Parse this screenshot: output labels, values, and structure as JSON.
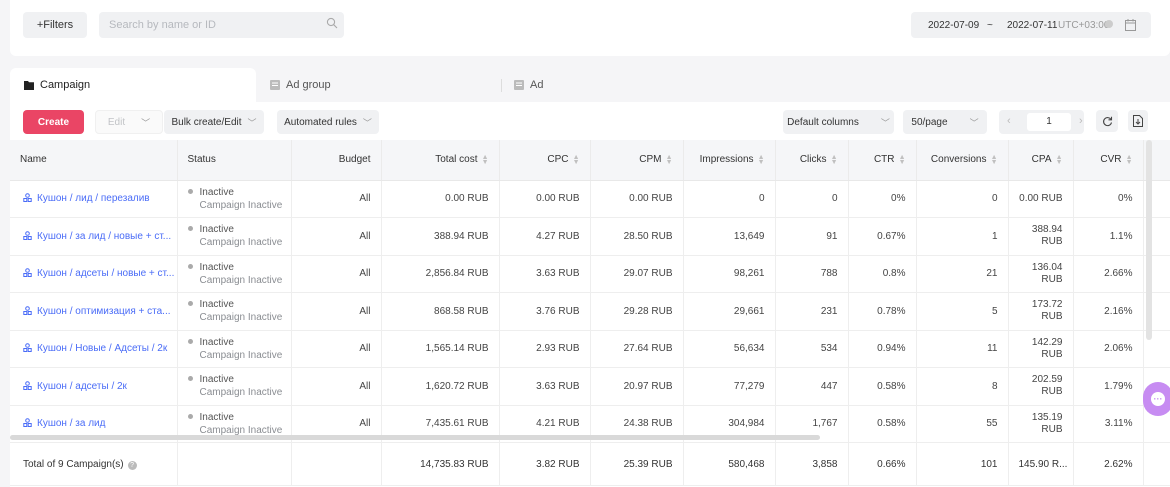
{
  "toolbar": {
    "filters_label": "+Filters",
    "search_placeholder": "Search by name or ID",
    "date_start": "2022-07-09",
    "date_sep": "~",
    "date_end": "2022-07-11",
    "timezone": "UTC+03:00"
  },
  "tabs": [
    {
      "label": "Campaign",
      "icon": "folder-icon",
      "active": true
    },
    {
      "label": "Ad group",
      "icon": "adgroup-icon",
      "active": false
    },
    {
      "label": "Ad",
      "icon": "ad-icon",
      "active": false
    }
  ],
  "actions": {
    "create": "Create",
    "edit": "Edit",
    "bulk": "Bulk create/Edit",
    "automated": "Automated rules",
    "columns": "Default columns",
    "per_page": "50/page",
    "page": "1"
  },
  "columns": [
    "Name",
    "Status",
    "Budget",
    "Total cost",
    "CPC",
    "CPM",
    "Impressions",
    "Clicks",
    "CTR",
    "Conversions",
    "CPA",
    "CVR"
  ],
  "rows": [
    {
      "name": "Кушон / лид / перезалив",
      "status": "Inactive",
      "substatus": "Campaign Inactive",
      "budget": "All",
      "total_cost": "0.00 RUB",
      "cpc": "0.00 RUB",
      "cpm": "0.00 RUB",
      "impressions": "0",
      "clicks": "0",
      "ctr": "0%",
      "conversions": "0",
      "cpa": "0.00 RUB",
      "cvr": "0%"
    },
    {
      "name": "Кушон / за лид / новые + ст...",
      "status": "Inactive",
      "substatus": "Campaign Inactive",
      "budget": "All",
      "total_cost": "388.94 RUB",
      "cpc": "4.27 RUB",
      "cpm": "28.50 RUB",
      "impressions": "13,649",
      "clicks": "91",
      "ctr": "0.67%",
      "conversions": "1",
      "cpa": "388.94 RUB",
      "cvr": "1.1%"
    },
    {
      "name": "Кушон / адсеты / новые + ст...",
      "status": "Inactive",
      "substatus": "Campaign Inactive",
      "budget": "All",
      "total_cost": "2,856.84 RUB",
      "cpc": "3.63 RUB",
      "cpm": "29.07 RUB",
      "impressions": "98,261",
      "clicks": "788",
      "ctr": "0.8%",
      "conversions": "21",
      "cpa": "136.04 RUB",
      "cvr": "2.66%"
    },
    {
      "name": "Кушон / оптимизация + ста...",
      "status": "Inactive",
      "substatus": "Campaign Inactive",
      "budget": "All",
      "total_cost": "868.58 RUB",
      "cpc": "3.76 RUB",
      "cpm": "29.28 RUB",
      "impressions": "29,661",
      "clicks": "231",
      "ctr": "0.78%",
      "conversions": "5",
      "cpa": "173.72 RUB",
      "cvr": "2.16%"
    },
    {
      "name": "Кушон / Новые / Адсеты / 2к",
      "status": "Inactive",
      "substatus": "Campaign Inactive",
      "budget": "All",
      "total_cost": "1,565.14 RUB",
      "cpc": "2.93 RUB",
      "cpm": "27.64 RUB",
      "impressions": "56,634",
      "clicks": "534",
      "ctr": "0.94%",
      "conversions": "11",
      "cpa": "142.29 RUB",
      "cvr": "2.06%"
    },
    {
      "name": "Кушон / адсеты / 2к",
      "status": "Inactive",
      "substatus": "Campaign Inactive",
      "budget": "All",
      "total_cost": "1,620.72 RUB",
      "cpc": "3.63 RUB",
      "cpm": "20.97 RUB",
      "impressions": "77,279",
      "clicks": "447",
      "ctr": "0.58%",
      "conversions": "8",
      "cpa": "202.59 RUB",
      "cvr": "1.79%"
    },
    {
      "name": "Кушон / за лид",
      "status": "Inactive",
      "substatus": "Campaign Inactive",
      "budget": "All",
      "total_cost": "7,435.61 RUB",
      "cpc": "4.21 RUB",
      "cpm": "24.38 RUB",
      "impressions": "304,984",
      "clicks": "1,767",
      "ctr": "0.58%",
      "conversions": "55",
      "cpa": "135.19 RUB",
      "cvr": "3.11%"
    }
  ],
  "total": {
    "label": "Total of 9 Campaign(s)",
    "total_cost": "14,735.83 RUB",
    "cpc": "3.82 RUB",
    "cpm": "25.39 RUB",
    "impressions": "580,468",
    "clicks": "3,858",
    "ctr": "0.66%",
    "conversions": "101",
    "cpa": "145.90 R...",
    "cvr": "2.62%"
  },
  "colors": {
    "accent": "#ea4565",
    "link": "#4a6cf7"
  }
}
